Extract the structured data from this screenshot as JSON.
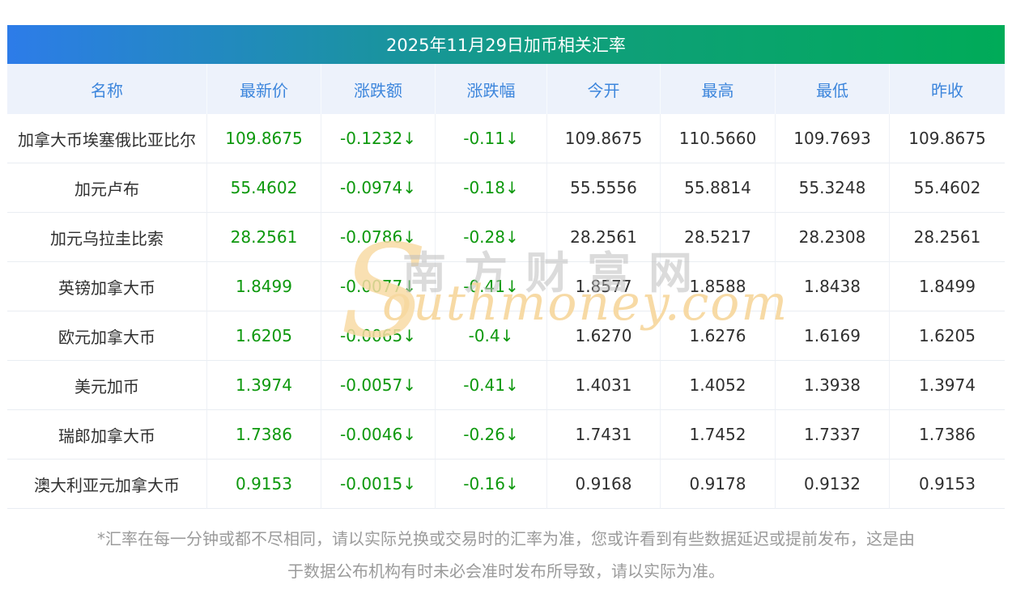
{
  "title": "2025年11月29日加币相关汇率",
  "chart_data": {
    "type": "table",
    "title": "2025年11月29日加币相关汇率",
    "columns": [
      "名称",
      "最新价",
      "涨跌额",
      "涨跌幅",
      "今开",
      "最高",
      "最低",
      "昨收"
    ],
    "rows": [
      {
        "name": "加拿大币埃塞俄比亚比尔",
        "latest": "109.8675",
        "change": "-0.1232↓",
        "change_pct": "-0.11↓",
        "open": "109.8675",
        "high": "110.5660",
        "low": "109.7693",
        "prev_close": "109.8675"
      },
      {
        "name": "加元卢布",
        "latest": "55.4602",
        "change": "-0.0974↓",
        "change_pct": "-0.18↓",
        "open": "55.5556",
        "high": "55.8814",
        "low": "55.3248",
        "prev_close": "55.4602"
      },
      {
        "name": "加元乌拉圭比索",
        "latest": "28.2561",
        "change": "-0.0786↓",
        "change_pct": "-0.28↓",
        "open": "28.2561",
        "high": "28.5217",
        "low": "28.2308",
        "prev_close": "28.2561"
      },
      {
        "name": "英镑加拿大币",
        "latest": "1.8499",
        "change": "-0.0077↓",
        "change_pct": "-0.41↓",
        "open": "1.8577",
        "high": "1.8588",
        "low": "1.8438",
        "prev_close": "1.8499"
      },
      {
        "name": "欧元加拿大币",
        "latest": "1.6205",
        "change": "-0.0065↓",
        "change_pct": "-0.4↓",
        "open": "1.6270",
        "high": "1.6276",
        "low": "1.6169",
        "prev_close": "1.6205"
      },
      {
        "name": "美元加币",
        "latest": "1.3974",
        "change": "-0.0057↓",
        "change_pct": "-0.41↓",
        "open": "1.4031",
        "high": "1.4052",
        "low": "1.3938",
        "prev_close": "1.3974"
      },
      {
        "name": "瑞郎加拿大币",
        "latest": "1.7386",
        "change": "-0.0046↓",
        "change_pct": "-0.26↓",
        "open": "1.7431",
        "high": "1.7452",
        "low": "1.7337",
        "prev_close": "1.7386"
      },
      {
        "name": "澳大利亚元加拿大币",
        "latest": "0.9153",
        "change": "-0.0015↓",
        "change_pct": "-0.16↓",
        "open": "0.9168",
        "high": "0.9178",
        "low": "0.9132",
        "prev_close": "0.9153"
      }
    ]
  },
  "watermark": {
    "swoosh": "S",
    "cn_text": "南方财富网",
    "en_text": "outhmoney.com"
  },
  "footer": {
    "lines": [
      "*汇率在每一分钟或都不尽相同，请以实际兑换或交易时的汇率为准，您或许看到有些数据延迟或提前发布，这是由",
      "于数据公布机构有时未必会准时发布所导致，请以实际为准。"
    ]
  },
  "colors": {
    "titlebar_gradient_left": "#2d7ce9",
    "titlebar_gradient_right": "#00ab58",
    "header_bg": "#edf2fb",
    "header_text": "#3d86dc",
    "value_down_green": "#0d980d",
    "body_text": "#2f2f2f",
    "footer_text": "#9b9b9b",
    "watermark_orange": "#f7d8a0",
    "watermark_gray": "#bebebe"
  }
}
